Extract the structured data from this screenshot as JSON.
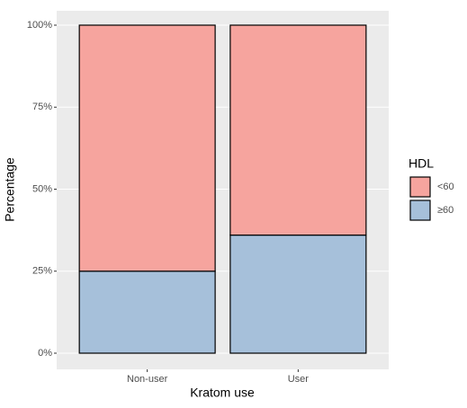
{
  "chart_data": {
    "type": "stacked_bar",
    "x_label": "Kratom use",
    "y_label": "Percentage",
    "categories": [
      "Non-user",
      "User"
    ],
    "legend_title": "HDL",
    "legend_position": "right",
    "series": [
      {
        "name": "≥60",
        "color": "#a6c0da",
        "values": [
          25,
          36
        ]
      },
      {
        "name": "<60",
        "color": "#f6a49e",
        "values": [
          75,
          64
        ]
      }
    ],
    "ylim": [
      0,
      100
    ],
    "yticks": [
      {
        "value": 0,
        "label": "0%"
      },
      {
        "value": 25,
        "label": "25%"
      },
      {
        "value": 50,
        "label": "50%"
      },
      {
        "value": 75,
        "label": "75%"
      },
      {
        "value": 100,
        "label": "100%"
      }
    ],
    "grid": true
  }
}
